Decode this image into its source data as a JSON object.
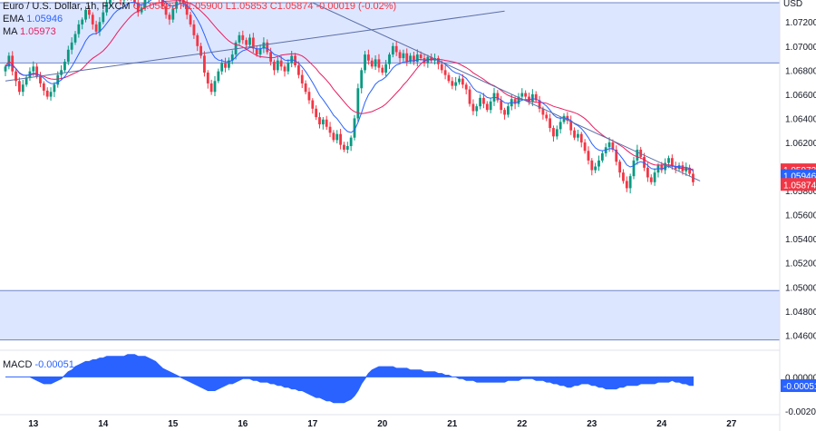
{
  "legend": {
    "symbol": "Euro / U.S. Dollar, 1h, FXCM",
    "ohlc": "O1.05893  H1.05900  L1.05853  C1.05874  -0.00019 (-0.02%)",
    "ema_label": "EMA",
    "ema_value": "1.05946",
    "ma_label": "MA",
    "ma_value": "1.05973"
  },
  "macd": {
    "label": "MACD",
    "value": "-0.00051"
  },
  "axis": {
    "currency": "USD",
    "price_ticks": [
      "1.07200",
      "1.07000",
      "1.06800",
      "1.06600",
      "1.06400",
      "1.06200",
      "1.05800",
      "1.05600",
      "1.05400",
      "1.05200",
      "1.05000",
      "1.04800",
      "1.04600"
    ],
    "macd_ticks": [
      "0.00000",
      "-0.00200"
    ],
    "date_ticks": [
      "13",
      "14",
      "15",
      "16",
      "17",
      "20",
      "21",
      "22",
      "23",
      "24",
      "27"
    ]
  },
  "badges": [
    {
      "text": "1.05973",
      "color": "#f23645"
    },
    {
      "text": "1.05946",
      "color": "#2962ff"
    },
    {
      "text": "1.05874",
      "color": "#f23645"
    },
    {
      "text": "-0.00051",
      "color": "#2962ff"
    }
  ],
  "colors": {
    "up": "#089981",
    "down": "#f23645",
    "ema": "#2962ff",
    "ma": "#e91e63",
    "zone": "#dde6ff",
    "macd": "#2962ff"
  },
  "chart_data": {
    "type": "candlestick",
    "title": "Euro / U.S. Dollar, 1h, FXCM",
    "ylim": [
      1.0455,
      1.0736
    ],
    "zones": [
      {
        "from": 1.0686,
        "to": 1.0736
      },
      {
        "from": 1.0456,
        "to": 1.0497
      }
    ],
    "trendlines": [
      {
        "from": [
          0,
          1.0671
        ],
        "to": [
          143,
          1.0729
        ]
      },
      {
        "from": [
          88,
          1.0736
        ],
        "to": [
          199,
          1.0588
        ]
      }
    ],
    "x_labels": [
      {
        "i": 8,
        "text": "13"
      },
      {
        "i": 28,
        "text": "14"
      },
      {
        "i": 48,
        "text": "15"
      },
      {
        "i": 68,
        "text": "16"
      },
      {
        "i": 88,
        "text": "17"
      },
      {
        "i": 108,
        "text": "20"
      },
      {
        "i": 128,
        "text": "21"
      },
      {
        "i": 148,
        "text": "22"
      },
      {
        "i": 168,
        "text": "23"
      },
      {
        "i": 188,
        "text": "24"
      },
      {
        "i": 208,
        "text": "27"
      }
    ],
    "close": [
      1.0683,
      1.0692,
      1.0679,
      1.0671,
      1.0662,
      1.0668,
      1.0674,
      1.0679,
      1.0683,
      1.0675,
      1.0669,
      1.0663,
      1.0658,
      1.0662,
      1.0668,
      1.0676,
      1.068,
      1.0687,
      1.0697,
      1.0703,
      1.071,
      1.0718,
      1.0722,
      1.073,
      1.0726,
      1.0718,
      1.0712,
      1.072,
      1.0728,
      1.0736,
      1.074,
      1.0745,
      1.0742,
      1.0738,
      1.0741,
      1.0745,
      1.0742,
      1.0736,
      1.0728,
      1.0732,
      1.0739,
      1.0744,
      1.0748,
      1.0745,
      1.0739,
      1.0733,
      1.0726,
      1.0722,
      1.0731,
      1.0737,
      1.0742,
      1.0735,
      1.0726,
      1.0718,
      1.0709,
      1.07,
      1.0692,
      1.0678,
      1.0669,
      1.0662,
      1.0671,
      1.0679,
      1.0686,
      1.0682,
      1.0688,
      1.0693,
      1.0703,
      1.0709,
      1.0705,
      1.0701,
      1.0707,
      1.0698,
      1.0693,
      1.0698,
      1.0703,
      1.0695,
      1.0687,
      1.068,
      1.0688,
      1.0683,
      1.0679,
      1.0686,
      1.0692,
      1.0684,
      1.0676,
      1.0669,
      1.0662,
      1.0655,
      1.0648,
      1.0641,
      1.0635,
      1.0639,
      1.0633,
      1.0628,
      1.0622,
      1.0627,
      1.0618,
      1.0614,
      1.0617,
      1.0624,
      1.064,
      1.0665,
      1.068,
      1.0693,
      1.0688,
      1.0683,
      1.0689,
      1.0682,
      1.0678,
      1.0685,
      1.0693,
      1.07,
      1.0695,
      1.069,
      1.0694,
      1.0687,
      1.0692,
      1.0687,
      1.0693,
      1.069,
      1.0686,
      1.0691,
      1.0688,
      1.069,
      1.0685,
      1.068,
      1.0676,
      1.0671,
      1.0667,
      1.067,
      1.0673,
      1.0668,
      1.0664,
      1.0652,
      1.0646,
      1.065,
      1.0657,
      1.0652,
      1.0647,
      1.0654,
      1.0661,
      1.0655,
      1.0647,
      1.0643,
      1.065,
      1.0656,
      1.0652,
      1.0658,
      1.0661,
      1.0658,
      1.0654,
      1.066,
      1.0655,
      1.0648,
      1.0643,
      1.064,
      1.0632,
      1.0625,
      1.0631,
      1.0637,
      1.0642,
      1.0638,
      1.063,
      1.0624,
      1.0627,
      1.062,
      1.0613,
      1.0605,
      1.0597,
      1.06,
      1.0605,
      1.0611,
      1.0616,
      1.062,
      1.0614,
      1.0604,
      1.0595,
      1.0588,
      1.0582,
      1.0592,
      1.0605,
      1.0614,
      1.0608,
      1.0599,
      1.0591,
      1.0587,
      1.0595,
      1.0601,
      1.0597,
      1.0603,
      1.0607,
      1.06,
      1.0598,
      1.0601,
      1.0596,
      1.0599,
      1.0594,
      1.0587
    ],
    "macd": [
      0,
      0,
      0,
      0,
      0,
      0,
      0,
      0,
      -0.0001,
      -0.0002,
      -0.0003,
      -0.0004,
      -0.0004,
      -0.0004,
      -0.0003,
      -0.0002,
      -0.0001,
      0.0001,
      0.0003,
      0.0004,
      0.0006,
      0.0007,
      0.0008,
      0.0009,
      0.0009,
      0.001,
      0.001,
      0.0011,
      0.0011,
      0.0012,
      0.0012,
      0.0012,
      0.0012,
      0.0012,
      0.0012,
      0.0013,
      0.0013,
      0.0013,
      0.0012,
      0.0012,
      0.0012,
      0.0011,
      0.001,
      0.0009,
      0.0007,
      0.0005,
      0.0004,
      0.0003,
      0.0002,
      0.0001,
      0,
      -0.0001,
      -0.0002,
      -0.0003,
      -0.0004,
      -0.0005,
      -0.0006,
      -0.0007,
      -0.0008,
      -0.0008,
      -0.0008,
      -0.0007,
      -0.0006,
      -0.0005,
      -0.0004,
      -0.0004,
      -0.0003,
      -0.0002,
      -0.0001,
      -0.0001,
      -0.0001,
      -0.0002,
      -0.0002,
      -0.0003,
      -0.0003,
      -0.0003,
      -0.0004,
      -0.0004,
      -0.0005,
      -0.0005,
      -0.0006,
      -0.0006,
      -0.0007,
      -0.0007,
      -0.0008,
      -0.0008,
      -0.0009,
      -0.001,
      -0.0011,
      -0.0012,
      -0.0012,
      -0.0013,
      -0.0014,
      -0.0014,
      -0.0015,
      -0.0015,
      -0.0015,
      -0.0015,
      -0.0014,
      -0.0013,
      -0.0011,
      -0.0008,
      -0.0004,
      -0.0001,
      0.0002,
      0.0004,
      0.0005,
      0.0006,
      0.0006,
      0.0006,
      0.0006,
      0.0006,
      0.0005,
      0.0005,
      0.0005,
      0.0005,
      0.0004,
      0.0004,
      0.0004,
      0.0004,
      0.0003,
      0.0003,
      0.0003,
      0.0003,
      0.0002,
      0.0002,
      0.0001,
      0.0001,
      0,
      0,
      -0.0001,
      -0.0001,
      -0.0002,
      -0.0002,
      -0.0002,
      -0.0003,
      -0.0003,
      -0.0003,
      -0.0003,
      -0.0003,
      -0.0003,
      -0.0003,
      -0.0003,
      -0.0003,
      -0.0002,
      -0.0002,
      -0.0002,
      -0.0002,
      -0.0001,
      -0.0001,
      -0.0001,
      -0.0001,
      -0.0002,
      -0.0002,
      -0.0002,
      -0.0003,
      -0.0003,
      -0.0004,
      -0.0004,
      -0.0005,
      -0.0005,
      -0.0006,
      -0.0006,
      -0.0005,
      -0.0005,
      -0.0004,
      -0.0004,
      -0.0004,
      -0.0005,
      -0.0005,
      -0.0006,
      -0.0006,
      -0.0007,
      -0.0007,
      -0.0007,
      -0.0007,
      -0.0006,
      -0.0006,
      -0.0005,
      -0.0005,
      -0.0005,
      -0.0005,
      -0.0004,
      -0.0004,
      -0.0004,
      -0.0004,
      -0.0004,
      -0.0003,
      -0.0003,
      -0.0003,
      -0.0003,
      -0.0002,
      -0.0003,
      -0.0003,
      -0.0004,
      -0.0004,
      -0.0005,
      -0.0005
    ],
    "macd_ylim": [
      -0.00215,
      0.00145
    ]
  }
}
